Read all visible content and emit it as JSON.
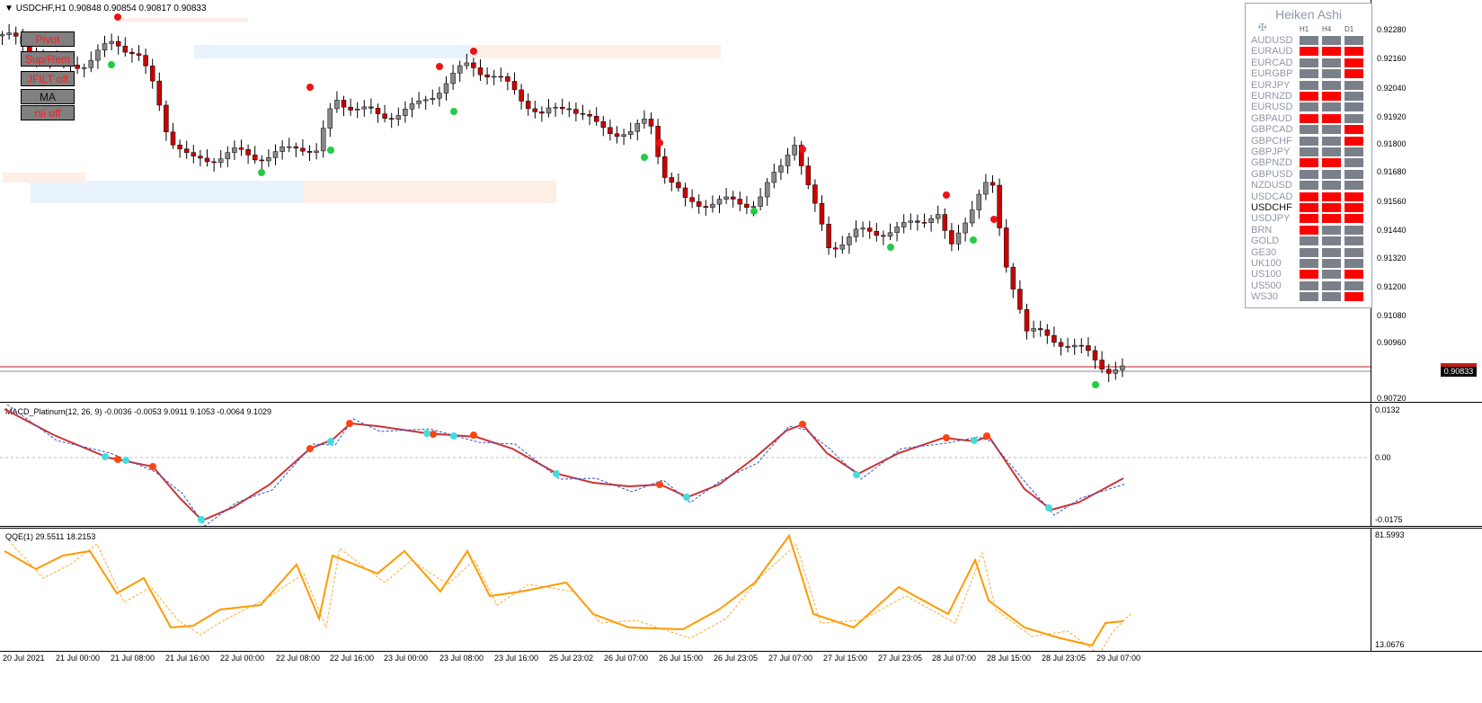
{
  "chart": {
    "symbol_line": "USDCHF,H1  0.90848 0.90854 0.90817 0.90833",
    "current_price": "0.90833",
    "price_axis": [
      "0.92280",
      "0.92160",
      "0.92040",
      "0.91920",
      "0.91800",
      "0.91680",
      "0.91560",
      "0.91440",
      "0.91320",
      "0.91200",
      "0.91080",
      "0.90960",
      "0.90720"
    ]
  },
  "buttons": [
    {
      "label": "Pivot"
    },
    {
      "label": "Sup/Rem"
    },
    {
      "label": "JFILT off"
    },
    {
      "label": "MA"
    },
    {
      "label": "rsi off"
    }
  ],
  "heiken_ashi": {
    "title": "Heiken Ashi",
    "columns": [
      "H1",
      "H4",
      "D1"
    ],
    "colors": {
      "red": "#ff0000",
      "gray": "#7a808a"
    },
    "rows": [
      {
        "symbol": "AUDUSD",
        "cells": [
          "gray",
          "gray",
          "gray"
        ]
      },
      {
        "symbol": "EURAUD",
        "cells": [
          "red",
          "red",
          "red"
        ]
      },
      {
        "symbol": "EURCAD",
        "cells": [
          "gray",
          "gray",
          "red"
        ]
      },
      {
        "symbol": "EURGBP",
        "cells": [
          "gray",
          "gray",
          "red"
        ]
      },
      {
        "symbol": "EURJPY",
        "cells": [
          "gray",
          "gray",
          "gray"
        ]
      },
      {
        "symbol": "EURNZD",
        "cells": [
          "red",
          "red",
          "gray"
        ]
      },
      {
        "symbol": "EURUSD",
        "cells": [
          "gray",
          "gray",
          "gray"
        ]
      },
      {
        "symbol": "GBPAUD",
        "cells": [
          "red",
          "red",
          "gray"
        ]
      },
      {
        "symbol": "GBPCAD",
        "cells": [
          "gray",
          "gray",
          "red"
        ]
      },
      {
        "symbol": "GBPCHF",
        "cells": [
          "gray",
          "gray",
          "red"
        ]
      },
      {
        "symbol": "GBPJPY",
        "cells": [
          "gray",
          "gray",
          "gray"
        ]
      },
      {
        "symbol": "GBPNZD",
        "cells": [
          "red",
          "red",
          "gray"
        ]
      },
      {
        "symbol": "GBPUSD",
        "cells": [
          "gray",
          "gray",
          "gray"
        ]
      },
      {
        "symbol": "NZDUSD",
        "cells": [
          "gray",
          "gray",
          "gray"
        ]
      },
      {
        "symbol": "USDCAD",
        "cells": [
          "red",
          "red",
          "red"
        ]
      },
      {
        "symbol": "USDCHF",
        "cells": [
          "red",
          "red",
          "red"
        ]
      },
      {
        "symbol": "USDJPY",
        "cells": [
          "red",
          "red",
          "red"
        ]
      },
      {
        "symbol": "BRN",
        "cells": [
          "red",
          "gray",
          "gray"
        ]
      },
      {
        "symbol": "GOLD",
        "cells": [
          "gray",
          "gray",
          "gray"
        ]
      },
      {
        "symbol": "GE30",
        "cells": [
          "gray",
          "gray",
          "gray"
        ]
      },
      {
        "symbol": "UK100",
        "cells": [
          "gray",
          "gray",
          "gray"
        ]
      },
      {
        "symbol": "US100",
        "cells": [
          "red",
          "gray",
          "red"
        ]
      },
      {
        "symbol": "US500",
        "cells": [
          "gray",
          "gray",
          "gray"
        ]
      },
      {
        "symbol": "WS30",
        "cells": [
          "gray",
          "gray",
          "red"
        ]
      }
    ]
  },
  "macd": {
    "label": "MACD_Platinum(12, 26, 9) -0.0036 -0.0053 9.0911 9.1053 -0.0064 9.1029",
    "axis": [
      "0.0132",
      "0.00",
      "-0.0175"
    ]
  },
  "qqe": {
    "label": "QQE(1) 29.5511 18.2153",
    "axis": [
      "81.5993",
      "13.0676"
    ]
  },
  "time_axis": [
    "20 Jul 2021",
    "21 Jul 00:00",
    "21 Jul 08:00",
    "21 Jul 16:00",
    "22 Jul 00:00",
    "22 Jul 08:00",
    "22 Jul 16:00",
    "23 Jul 00:00",
    "23 Jul 08:00",
    "23 Jul 16:00",
    "25 Jul 23:02",
    "26 Jul 07:00",
    "26 Jul 15:00",
    "26 Jul 23:05",
    "27 Jul 07:00",
    "27 Jul 15:00",
    "27 Jul 23:05",
    "28 Jul 07:00",
    "28 Jul 15:00",
    "28 Jul 23:05",
    "29 Jul 07:00"
  ]
}
